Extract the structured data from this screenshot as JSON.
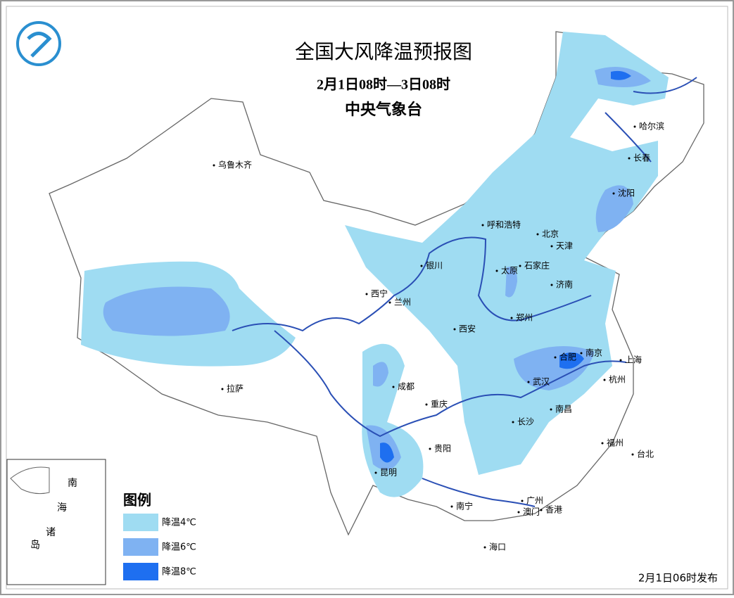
{
  "header": {
    "title": "全国大风降温预报图",
    "period": "2月1日08时—3日08时",
    "issuer": "中央气象台"
  },
  "cities": [
    {
      "label": "乌鲁木齐"
    },
    {
      "label": "哈尔滨"
    },
    {
      "label": "长春"
    },
    {
      "label": "沈阳"
    },
    {
      "label": "呼和浩特"
    },
    {
      "label": "北京"
    },
    {
      "label": "天津"
    },
    {
      "label": "石家庄"
    },
    {
      "label": "太原"
    },
    {
      "label": "银川"
    },
    {
      "label": "济南"
    },
    {
      "label": "西宁"
    },
    {
      "label": "兰州"
    },
    {
      "label": "郑州"
    },
    {
      "label": "西安"
    },
    {
      "label": "合肥"
    },
    {
      "label": "南京"
    },
    {
      "label": "上海"
    },
    {
      "label": "拉萨"
    },
    {
      "label": "成都"
    },
    {
      "label": "武汉"
    },
    {
      "label": "杭州"
    },
    {
      "label": "重庆"
    },
    {
      "label": "南昌"
    },
    {
      "label": "长沙"
    },
    {
      "label": "贵阳"
    },
    {
      "label": "福州"
    },
    {
      "label": "台北"
    },
    {
      "label": "昆明"
    },
    {
      "label": "南宁"
    },
    {
      "label": "广州"
    },
    {
      "label": "澳门"
    },
    {
      "label": "香港"
    },
    {
      "label": "海口"
    }
  ],
  "legend": {
    "title": "图例",
    "items": [
      {
        "label": "降温4℃",
        "color": "#9fdcf2"
      },
      {
        "label": "降温6℃",
        "color": "#7fb2f2"
      },
      {
        "label": "降温8℃",
        "color": "#1e6ff0"
      }
    ]
  },
  "inset": {
    "labels": [
      "南",
      "海",
      "诸",
      "岛"
    ]
  },
  "footer": {
    "issued": "2月1日06时发布"
  }
}
